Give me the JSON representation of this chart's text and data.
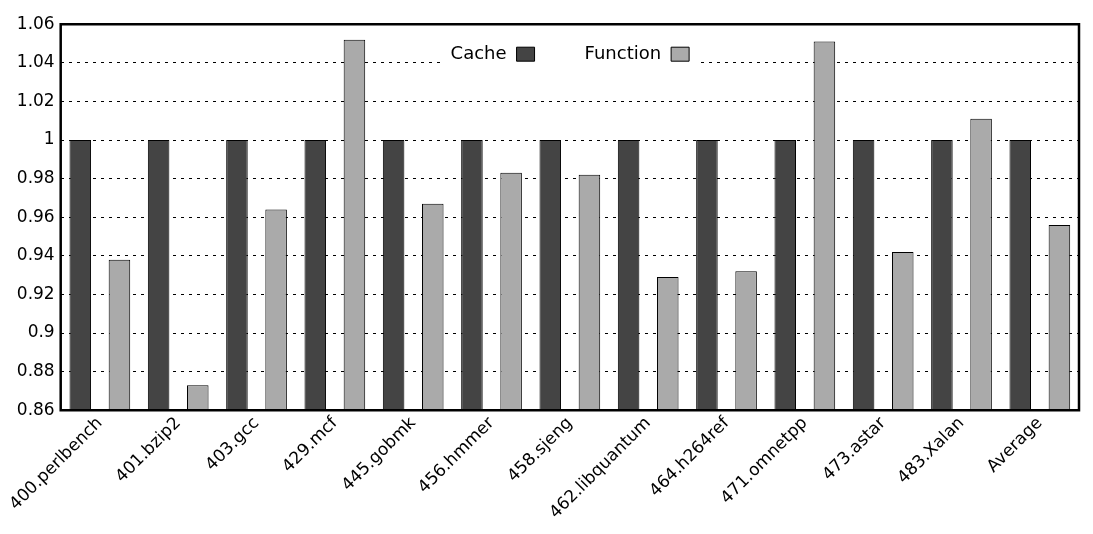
{
  "chart_data": {
    "type": "bar",
    "categories": [
      "400.perlbench",
      "401.bzip2",
      "403.gcc",
      "429.mcf",
      "445.gobmk",
      "456.hmmer",
      "458.sjeng",
      "462.libquantum",
      "464.h264ref",
      "471.omnetpp",
      "473.astar",
      "483.Xalan",
      "Average"
    ],
    "series": [
      {
        "name": "Cache",
        "color": "#444444",
        "values": [
          1,
          1,
          1,
          1,
          1,
          1,
          1,
          1,
          1,
          1,
          1,
          1,
          1
        ]
      },
      {
        "name": "Function",
        "color": "#aaaaaa",
        "values": [
          0.938,
          0.873,
          0.964,
          1.052,
          0.967,
          0.983,
          0.982,
          0.929,
          0.932,
          1.051,
          0.942,
          1.011,
          0.956
        ]
      }
    ],
    "ylim": [
      0.86,
      1.06
    ],
    "yticks": [
      0.86,
      0.88,
      0.9,
      0.92,
      0.94,
      0.96,
      0.98,
      1,
      1.02,
      1.04,
      1.06
    ],
    "grid": "y",
    "legend": "top"
  }
}
